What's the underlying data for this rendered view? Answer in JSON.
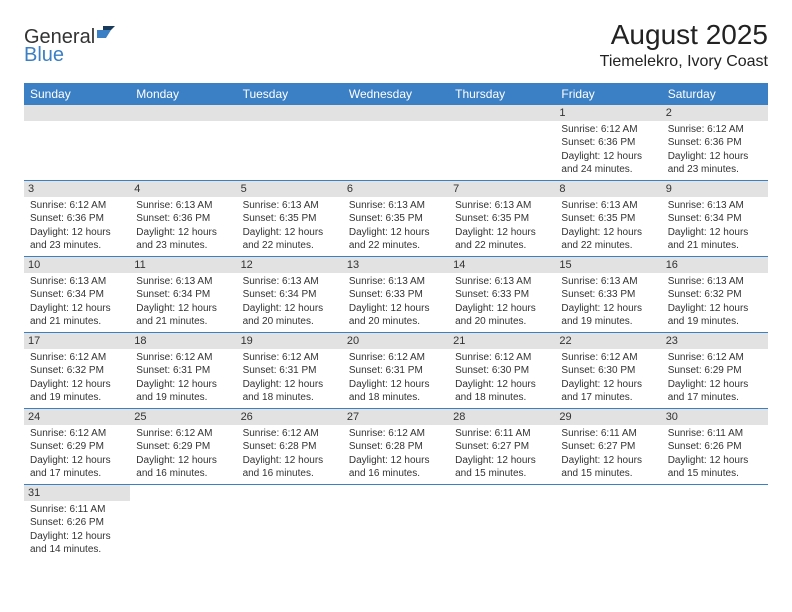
{
  "logo": {
    "general": "General",
    "blue": "Blue"
  },
  "header": {
    "month_title": "August 2025",
    "location": "Tiemelekro, Ivory Coast"
  },
  "colors": {
    "header_bg": "#3b7fc4",
    "header_text": "#ffffff",
    "daynum_bg": "#e2e2e2",
    "cell_border": "#3b7fc4",
    "text": "#333333",
    "logo_blue": "#3b7fc4",
    "logo_dark": "#1a3a5c"
  },
  "day_headers": [
    "Sunday",
    "Monday",
    "Tuesday",
    "Wednesday",
    "Thursday",
    "Friday",
    "Saturday"
  ],
  "weeks": [
    [
      {
        "blank": true
      },
      {
        "blank": true
      },
      {
        "blank": true
      },
      {
        "blank": true
      },
      {
        "blank": true
      },
      {
        "daynum": "1",
        "sunrise": "Sunrise: 6:12 AM",
        "sunset": "Sunset: 6:36 PM",
        "daylight1": "Daylight: 12 hours",
        "daylight2": "and 24 minutes."
      },
      {
        "daynum": "2",
        "sunrise": "Sunrise: 6:12 AM",
        "sunset": "Sunset: 6:36 PM",
        "daylight1": "Daylight: 12 hours",
        "daylight2": "and 23 minutes."
      }
    ],
    [
      {
        "daynum": "3",
        "sunrise": "Sunrise: 6:12 AM",
        "sunset": "Sunset: 6:36 PM",
        "daylight1": "Daylight: 12 hours",
        "daylight2": "and 23 minutes."
      },
      {
        "daynum": "4",
        "sunrise": "Sunrise: 6:13 AM",
        "sunset": "Sunset: 6:36 PM",
        "daylight1": "Daylight: 12 hours",
        "daylight2": "and 23 minutes."
      },
      {
        "daynum": "5",
        "sunrise": "Sunrise: 6:13 AM",
        "sunset": "Sunset: 6:35 PM",
        "daylight1": "Daylight: 12 hours",
        "daylight2": "and 22 minutes."
      },
      {
        "daynum": "6",
        "sunrise": "Sunrise: 6:13 AM",
        "sunset": "Sunset: 6:35 PM",
        "daylight1": "Daylight: 12 hours",
        "daylight2": "and 22 minutes."
      },
      {
        "daynum": "7",
        "sunrise": "Sunrise: 6:13 AM",
        "sunset": "Sunset: 6:35 PM",
        "daylight1": "Daylight: 12 hours",
        "daylight2": "and 22 minutes."
      },
      {
        "daynum": "8",
        "sunrise": "Sunrise: 6:13 AM",
        "sunset": "Sunset: 6:35 PM",
        "daylight1": "Daylight: 12 hours",
        "daylight2": "and 22 minutes."
      },
      {
        "daynum": "9",
        "sunrise": "Sunrise: 6:13 AM",
        "sunset": "Sunset: 6:34 PM",
        "daylight1": "Daylight: 12 hours",
        "daylight2": "and 21 minutes."
      }
    ],
    [
      {
        "daynum": "10",
        "sunrise": "Sunrise: 6:13 AM",
        "sunset": "Sunset: 6:34 PM",
        "daylight1": "Daylight: 12 hours",
        "daylight2": "and 21 minutes."
      },
      {
        "daynum": "11",
        "sunrise": "Sunrise: 6:13 AM",
        "sunset": "Sunset: 6:34 PM",
        "daylight1": "Daylight: 12 hours",
        "daylight2": "and 21 minutes."
      },
      {
        "daynum": "12",
        "sunrise": "Sunrise: 6:13 AM",
        "sunset": "Sunset: 6:34 PM",
        "daylight1": "Daylight: 12 hours",
        "daylight2": "and 20 minutes."
      },
      {
        "daynum": "13",
        "sunrise": "Sunrise: 6:13 AM",
        "sunset": "Sunset: 6:33 PM",
        "daylight1": "Daylight: 12 hours",
        "daylight2": "and 20 minutes."
      },
      {
        "daynum": "14",
        "sunrise": "Sunrise: 6:13 AM",
        "sunset": "Sunset: 6:33 PM",
        "daylight1": "Daylight: 12 hours",
        "daylight2": "and 20 minutes."
      },
      {
        "daynum": "15",
        "sunrise": "Sunrise: 6:13 AM",
        "sunset": "Sunset: 6:33 PM",
        "daylight1": "Daylight: 12 hours",
        "daylight2": "and 19 minutes."
      },
      {
        "daynum": "16",
        "sunrise": "Sunrise: 6:13 AM",
        "sunset": "Sunset: 6:32 PM",
        "daylight1": "Daylight: 12 hours",
        "daylight2": "and 19 minutes."
      }
    ],
    [
      {
        "daynum": "17",
        "sunrise": "Sunrise: 6:12 AM",
        "sunset": "Sunset: 6:32 PM",
        "daylight1": "Daylight: 12 hours",
        "daylight2": "and 19 minutes."
      },
      {
        "daynum": "18",
        "sunrise": "Sunrise: 6:12 AM",
        "sunset": "Sunset: 6:31 PM",
        "daylight1": "Daylight: 12 hours",
        "daylight2": "and 19 minutes."
      },
      {
        "daynum": "19",
        "sunrise": "Sunrise: 6:12 AM",
        "sunset": "Sunset: 6:31 PM",
        "daylight1": "Daylight: 12 hours",
        "daylight2": "and 18 minutes."
      },
      {
        "daynum": "20",
        "sunrise": "Sunrise: 6:12 AM",
        "sunset": "Sunset: 6:31 PM",
        "daylight1": "Daylight: 12 hours",
        "daylight2": "and 18 minutes."
      },
      {
        "daynum": "21",
        "sunrise": "Sunrise: 6:12 AM",
        "sunset": "Sunset: 6:30 PM",
        "daylight1": "Daylight: 12 hours",
        "daylight2": "and 18 minutes."
      },
      {
        "daynum": "22",
        "sunrise": "Sunrise: 6:12 AM",
        "sunset": "Sunset: 6:30 PM",
        "daylight1": "Daylight: 12 hours",
        "daylight2": "and 17 minutes."
      },
      {
        "daynum": "23",
        "sunrise": "Sunrise: 6:12 AM",
        "sunset": "Sunset: 6:29 PM",
        "daylight1": "Daylight: 12 hours",
        "daylight2": "and 17 minutes."
      }
    ],
    [
      {
        "daynum": "24",
        "sunrise": "Sunrise: 6:12 AM",
        "sunset": "Sunset: 6:29 PM",
        "daylight1": "Daylight: 12 hours",
        "daylight2": "and 17 minutes."
      },
      {
        "daynum": "25",
        "sunrise": "Sunrise: 6:12 AM",
        "sunset": "Sunset: 6:29 PM",
        "daylight1": "Daylight: 12 hours",
        "daylight2": "and 16 minutes."
      },
      {
        "daynum": "26",
        "sunrise": "Sunrise: 6:12 AM",
        "sunset": "Sunset: 6:28 PM",
        "daylight1": "Daylight: 12 hours",
        "daylight2": "and 16 minutes."
      },
      {
        "daynum": "27",
        "sunrise": "Sunrise: 6:12 AM",
        "sunset": "Sunset: 6:28 PM",
        "daylight1": "Daylight: 12 hours",
        "daylight2": "and 16 minutes."
      },
      {
        "daynum": "28",
        "sunrise": "Sunrise: 6:11 AM",
        "sunset": "Sunset: 6:27 PM",
        "daylight1": "Daylight: 12 hours",
        "daylight2": "and 15 minutes."
      },
      {
        "daynum": "29",
        "sunrise": "Sunrise: 6:11 AM",
        "sunset": "Sunset: 6:27 PM",
        "daylight1": "Daylight: 12 hours",
        "daylight2": "and 15 minutes."
      },
      {
        "daynum": "30",
        "sunrise": "Sunrise: 6:11 AM",
        "sunset": "Sunset: 6:26 PM",
        "daylight1": "Daylight: 12 hours",
        "daylight2": "and 15 minutes."
      }
    ],
    [
      {
        "daynum": "31",
        "sunrise": "Sunrise: 6:11 AM",
        "sunset": "Sunset: 6:26 PM",
        "daylight1": "Daylight: 12 hours",
        "daylight2": "and 14 minutes."
      },
      {
        "blank": true
      },
      {
        "blank": true
      },
      {
        "blank": true
      },
      {
        "blank": true
      },
      {
        "blank": true
      },
      {
        "blank": true
      }
    ]
  ]
}
